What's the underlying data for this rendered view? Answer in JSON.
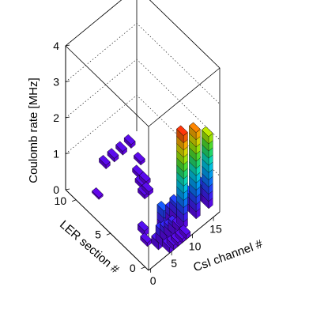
{
  "chart_data": {
    "type": "lego3d",
    "zlabel": "Coulomb rate [MHz]",
    "xlabel": "CsI channel #",
    "ylabel": "LER section #",
    "xlim": [
      0,
      17
    ],
    "ylim": [
      0,
      12
    ],
    "zlim": [
      0,
      4
    ],
    "zticks": [
      "0",
      "1",
      "2",
      "3",
      "4"
    ],
    "xticks": [
      "0",
      "5",
      "10",
      "15"
    ],
    "yticks": [
      "0",
      "5",
      "10"
    ],
    "grid": true,
    "colormap": "rainbow",
    "bins": [
      {
        "x": 5,
        "y": 0,
        "v": 0.15
      },
      {
        "x": 6,
        "y": 0,
        "v": 0.12
      },
      {
        "x": 7,
        "y": 0,
        "v": 0.1
      },
      {
        "x": 8,
        "y": 0,
        "v": 0.1
      },
      {
        "x": 9,
        "y": 0,
        "v": 0.12
      },
      {
        "x": 4,
        "y": 1,
        "v": 0.2
      },
      {
        "x": 5,
        "y": 1,
        "v": 0.4
      },
      {
        "x": 6,
        "y": 1,
        "v": 0.35
      },
      {
        "x": 7,
        "y": 1,
        "v": 0.3
      },
      {
        "x": 8,
        "y": 1,
        "v": 0.3
      },
      {
        "x": 9,
        "y": 1,
        "v": 0.15
      },
      {
        "x": 10,
        "y": 1,
        "v": 2.6
      },
      {
        "x": 13,
        "y": 1,
        "v": 2.4
      },
      {
        "x": 16,
        "y": 1,
        "v": 2.0
      },
      {
        "x": 3,
        "y": 2,
        "v": 0.1
      },
      {
        "x": 7,
        "y": 2,
        "v": 0.6
      },
      {
        "x": 9,
        "y": 2,
        "v": 0.4
      },
      {
        "x": 10,
        "y": 2,
        "v": 0.5
      },
      {
        "x": 13,
        "y": 2,
        "v": 0.5
      },
      {
        "x": 16,
        "y": 2,
        "v": 0.45
      },
      {
        "x": 4,
        "y": 3,
        "v": 0.15
      },
      {
        "x": 9,
        "y": 3,
        "v": 0.15
      },
      {
        "x": 3,
        "y": 9,
        "v": 0.05
      },
      {
        "x": 9,
        "y": 6,
        "v": 0.1
      },
      {
        "x": 10,
        "y": 6,
        "v": 0.1
      },
      {
        "x": 10,
        "y": 7,
        "v": 0.1
      },
      {
        "x": 11,
        "y": 7,
        "v": 0.1
      },
      {
        "x": 11,
        "y": 8,
        "v": 0.1
      },
      {
        "x": 8,
        "y": 11,
        "v": 0.1
      },
      {
        "x": 10,
        "y": 11,
        "v": 0.1
      },
      {
        "x": 12,
        "y": 11,
        "v": 0.1
      },
      {
        "x": 14,
        "y": 11,
        "v": 0.1
      },
      {
        "x": 13,
        "y": 9,
        "v": 0.08
      }
    ]
  }
}
